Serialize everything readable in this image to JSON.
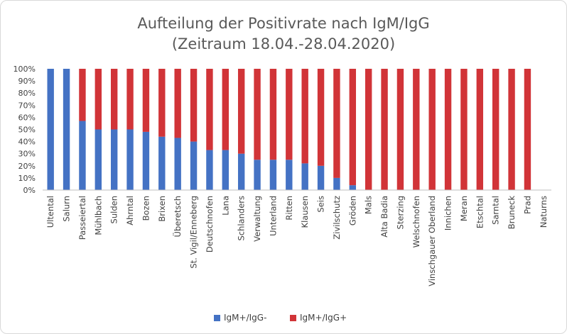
{
  "chart_data": {
    "type": "bar",
    "stacked": true,
    "title": "Aufteilung der Positivrate nach IgM/IgG",
    "subtitle": "(Zeitraum 18.04.-28.04.2020)",
    "xlabel": "",
    "ylabel": "",
    "ylim": [
      0,
      100
    ],
    "yticks": [
      "0%",
      "10%",
      "20%",
      "30%",
      "40%",
      "50%",
      "60%",
      "70%",
      "80%",
      "90%",
      "100%"
    ],
    "grid": false,
    "legend_position": "bottom",
    "categories": [
      "Ultental",
      "Salurn",
      "Passeiertal",
      "Mühlbach",
      "Sulden",
      "Ahrntal",
      "Bozen",
      "Brixen",
      "Überetsch",
      "St. Vigil/Enneberg",
      "Deutschnofen",
      "Lana",
      "Schlanders",
      "Verwaltung",
      "Unterland",
      "Ritten",
      "Klausen",
      "Seis",
      "Zivilschutz",
      "Gröden",
      "Mals",
      "Alta Badia",
      "Sterzing",
      "Welschnofen",
      "Vinschgauer Oberland",
      "Innichen",
      "Meran",
      "Etschtal",
      "Sarntal",
      "Bruneck",
      "Prad",
      "Naturns"
    ],
    "series": [
      {
        "name": "IgM+/IgG-",
        "color": "#4472c4",
        "values": [
          100,
          100,
          57,
          50,
          50,
          50,
          48,
          44,
          43,
          40,
          33,
          33,
          30,
          25,
          25,
          25,
          22,
          20,
          10,
          4,
          0,
          0,
          0,
          0,
          0,
          0,
          0,
          0,
          0,
          0,
          0,
          0
        ]
      },
      {
        "name": "IgM+/IgG+",
        "color": "#d13438",
        "values": [
          0,
          0,
          43,
          50,
          50,
          50,
          52,
          56,
          57,
          60,
          67,
          67,
          70,
          75,
          75,
          75,
          78,
          80,
          90,
          96,
          100,
          100,
          100,
          100,
          100,
          100,
          100,
          100,
          100,
          100,
          100,
          0
        ]
      }
    ]
  }
}
